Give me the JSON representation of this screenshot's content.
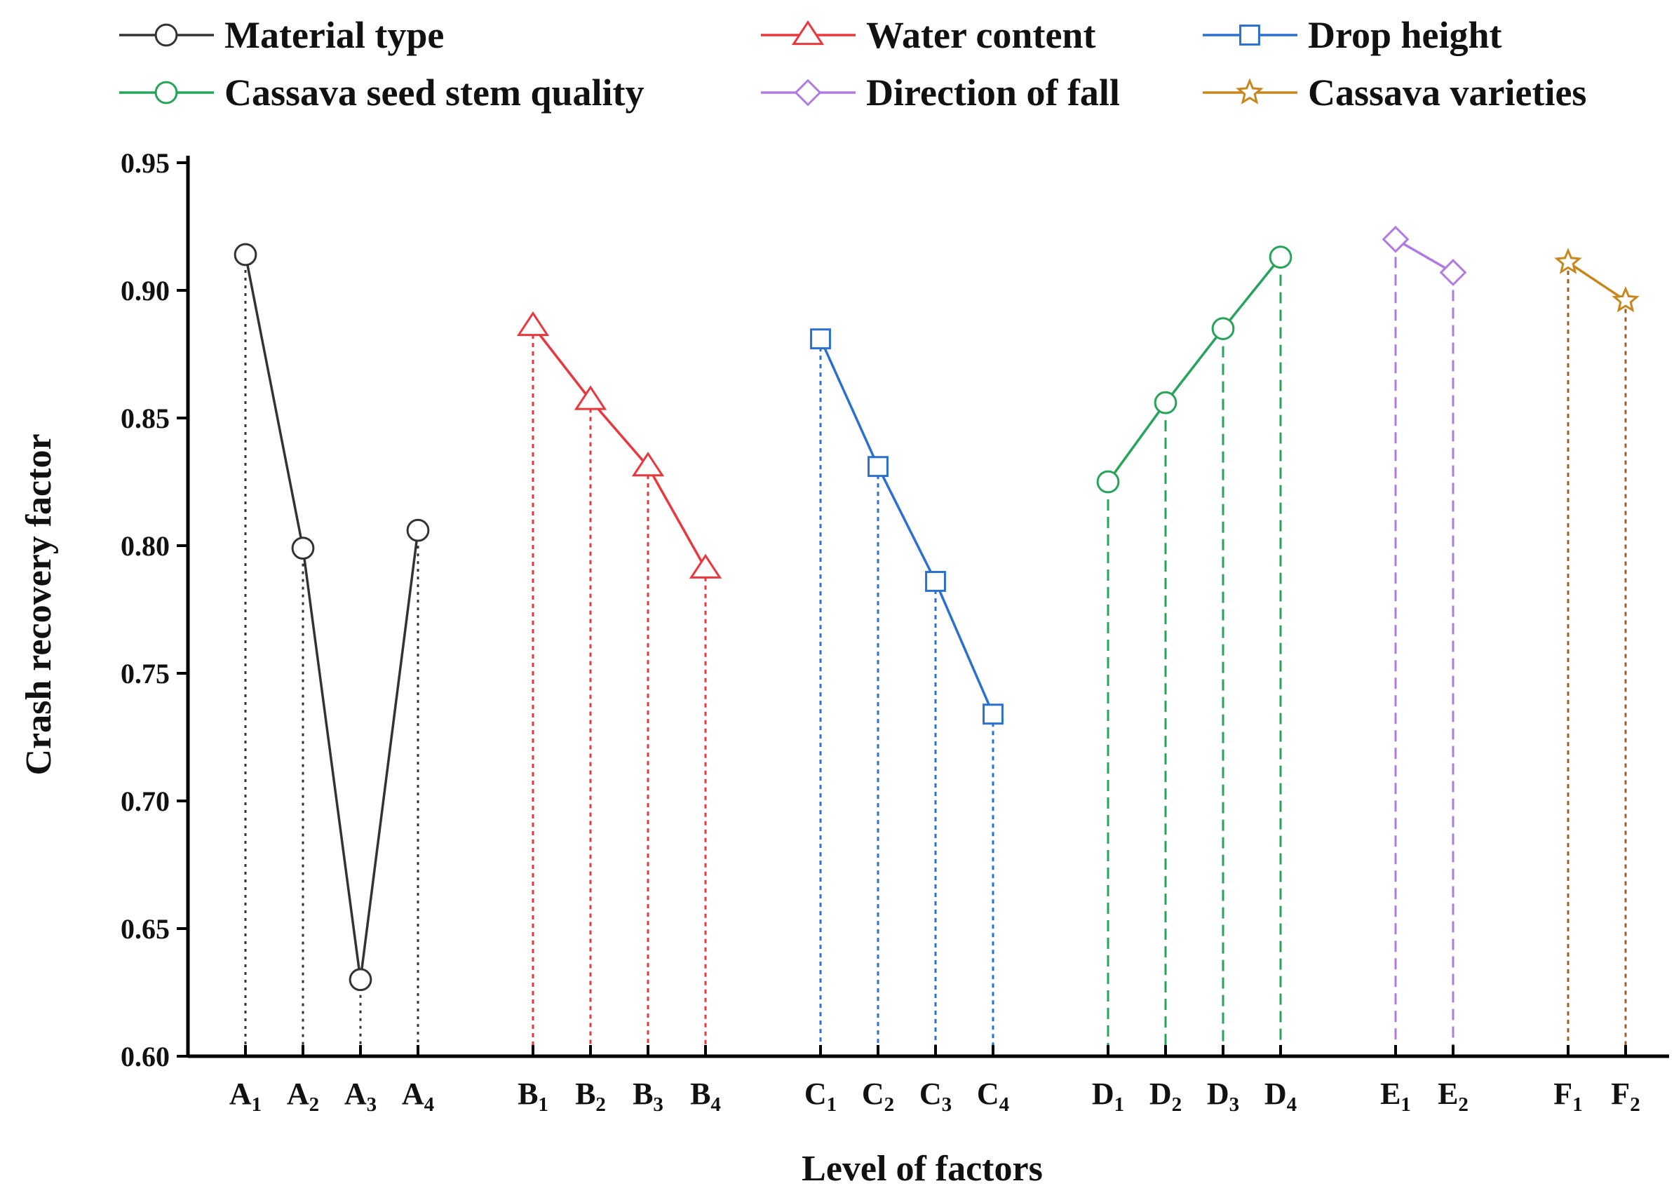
{
  "chart_data": {
    "type": "line",
    "xlabel": "Level of factors",
    "ylabel": "Crash recovery factor",
    "ylim": [
      0.6,
      0.95
    ],
    "yticks": [
      "0.60",
      "0.65",
      "0.70",
      "0.75",
      "0.80",
      "0.85",
      "0.90",
      "0.95"
    ],
    "legend_position": "top",
    "series": [
      {
        "name": "Material type",
        "color": "#333333",
        "marker": "circle",
        "drop_style": "dotted-fine",
        "levels": [
          {
            "letter": "A",
            "sub": "1"
          },
          {
            "letter": "A",
            "sub": "2"
          },
          {
            "letter": "A",
            "sub": "3"
          },
          {
            "letter": "A",
            "sub": "4"
          }
        ],
        "values": [
          0.914,
          0.799,
          0.63,
          0.806
        ]
      },
      {
        "name": "Water content",
        "color": "#e8383d",
        "marker": "triangle",
        "drop_style": "dotted",
        "levels": [
          {
            "letter": "B",
            "sub": "1"
          },
          {
            "letter": "B",
            "sub": "2"
          },
          {
            "letter": "B",
            "sub": "3"
          },
          {
            "letter": "B",
            "sub": "4"
          }
        ],
        "values": [
          0.886,
          0.857,
          0.831,
          0.791
        ]
      },
      {
        "name": "Drop height",
        "color": "#2b6fd1",
        "marker": "square",
        "drop_style": "dotted",
        "levels": [
          {
            "letter": "C",
            "sub": "1"
          },
          {
            "letter": "C",
            "sub": "2"
          },
          {
            "letter": "C",
            "sub": "3"
          },
          {
            "letter": "C",
            "sub": "4"
          }
        ],
        "values": [
          0.881,
          0.831,
          0.786,
          0.734
        ]
      },
      {
        "name": "Cassava seed stem quality",
        "color": "#27a35a",
        "marker": "circle",
        "drop_style": "dashed",
        "levels": [
          {
            "letter": "D",
            "sub": "1"
          },
          {
            "letter": "D",
            "sub": "2"
          },
          {
            "letter": "D",
            "sub": "3"
          },
          {
            "letter": "D",
            "sub": "4"
          }
        ],
        "values": [
          0.825,
          0.856,
          0.885,
          0.913
        ]
      },
      {
        "name": "Direction of fall",
        "color": "#b07be0",
        "marker": "diamond",
        "drop_style": "dashed",
        "levels": [
          {
            "letter": "E",
            "sub": "1"
          },
          {
            "letter": "E",
            "sub": "2"
          }
        ],
        "values": [
          0.92,
          0.907
        ]
      },
      {
        "name": "Cassava varieties",
        "color": "#c8871e",
        "marker": "star",
        "drop_style": "dotted-brown",
        "levels": [
          {
            "letter": "F",
            "sub": "1"
          },
          {
            "letter": "F",
            "sub": "2"
          }
        ],
        "values": [
          0.911,
          0.896
        ]
      }
    ]
  }
}
